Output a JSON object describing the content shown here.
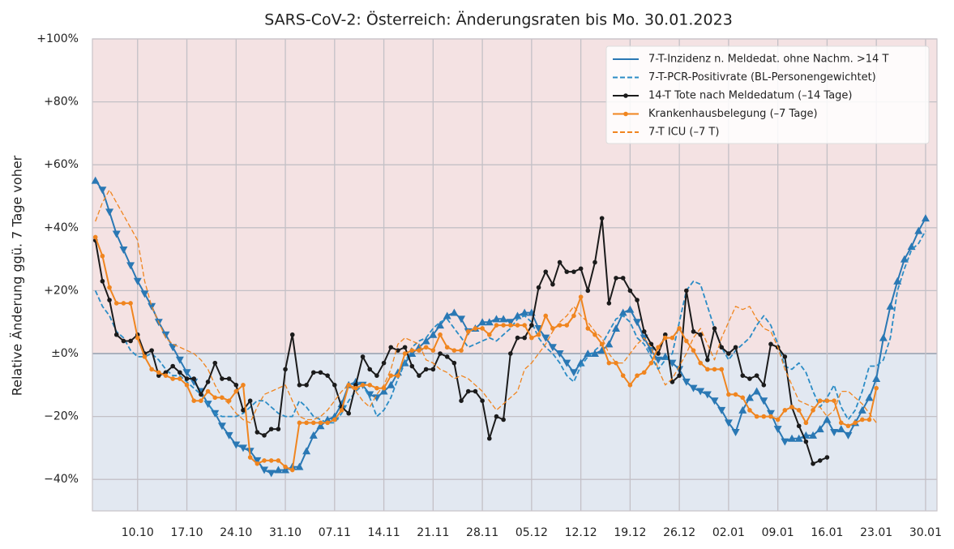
{
  "chart_data": {
    "type": "line",
    "title": "SARS-CoV-2: Österreich: Änderungsraten bis Mo. 30.01.2023",
    "ylabel": "Relative Änderung ggü. 7 Tage voher",
    "categories": [
      "04.10",
      "05.10",
      "06.10",
      "07.10",
      "08.10",
      "09.10",
      "10.10",
      "11.10",
      "12.10",
      "13.10",
      "14.10",
      "15.10",
      "16.10",
      "17.10",
      "18.10",
      "19.10",
      "20.10",
      "21.10",
      "22.10",
      "23.10",
      "24.10",
      "25.10",
      "26.10",
      "27.10",
      "28.10",
      "29.10",
      "30.10",
      "31.10",
      "01.11",
      "02.11",
      "03.11",
      "04.11",
      "05.11",
      "06.11",
      "07.11",
      "08.11",
      "09.11",
      "10.11",
      "11.11",
      "12.11",
      "13.11",
      "14.11",
      "15.11",
      "16.11",
      "17.11",
      "18.11",
      "19.11",
      "20.11",
      "21.11",
      "22.11",
      "23.11",
      "24.11",
      "25.11",
      "26.11",
      "27.11",
      "28.11",
      "29.11",
      "30.11",
      "01.12",
      "02.12",
      "03.12",
      "04.12",
      "05.12",
      "06.12",
      "07.12",
      "08.12",
      "09.12",
      "10.12",
      "11.12",
      "12.12",
      "13.12",
      "14.12",
      "15.12",
      "16.12",
      "17.12",
      "18.12",
      "19.12",
      "20.12",
      "21.12",
      "22.12",
      "23.12",
      "24.12",
      "25.12",
      "26.12",
      "27.12",
      "28.12",
      "29.12",
      "30.12",
      "31.12",
      "01.01",
      "02.01",
      "03.01",
      "04.01",
      "05.01",
      "06.01",
      "07.01",
      "08.01",
      "09.01",
      "10.01",
      "11.01",
      "12.01",
      "13.01",
      "14.01",
      "15.01",
      "16.01",
      "17.01",
      "18.01",
      "19.01",
      "20.01",
      "21.01",
      "22.01",
      "23.01",
      "24.01",
      "25.01",
      "26.01",
      "27.01",
      "28.01",
      "29.01",
      "30.01"
    ],
    "xticks": [
      "10.10",
      "17.10",
      "24.10",
      "31.10",
      "07.11",
      "14.11",
      "21.11",
      "28.11",
      "05.12",
      "12.12",
      "19.12",
      "26.12",
      "02.01",
      "09.01",
      "16.01",
      "23.01",
      "30.01"
    ],
    "ylim": [
      -50,
      100
    ],
    "yticks": [
      {
        "value": -40,
        "label": "−40%"
      },
      {
        "value": -20,
        "label": "−20%"
      },
      {
        "value": 0,
        "label": "±0%"
      },
      {
        "value": 20,
        "label": "+20%"
      },
      {
        "value": 40,
        "label": "+40%"
      },
      {
        "value": 60,
        "label": "+60%"
      },
      {
        "value": 80,
        "label": "+80%"
      },
      {
        "value": 100,
        "label": "+100%"
      }
    ],
    "grid": true,
    "legend": "upper right",
    "positive_color": "#f4e2e3",
    "negative_color": "#e2e8f1",
    "series": [
      {
        "name": "7-T-Inzidenz n. Meldedat. ohne Nachm. >14 T",
        "color": "#2a78b4",
        "dash": false,
        "marker": "triangle",
        "values": [
          55,
          52,
          45,
          38,
          33,
          28,
          23,
          19,
          15,
          10,
          6,
          2,
          -2,
          -6,
          -9,
          -12,
          -16,
          -19,
          -23,
          -26,
          -29,
          -30,
          -31,
          -34,
          -37,
          -38,
          -37,
          -37,
          -36,
          -36,
          -31,
          -26,
          -23,
          -21,
          -20,
          -16,
          -10,
          -9,
          -10,
          -13,
          -14,
          -12,
          -10,
          -6,
          -3,
          0,
          2,
          4,
          6,
          9,
          12,
          13,
          11,
          7,
          8,
          10,
          10,
          11,
          11,
          10,
          12,
          13,
          13,
          8,
          5,
          2,
          0,
          -3,
          -6,
          -3,
          0,
          0,
          1,
          3,
          8,
          13,
          14,
          10,
          5,
          1,
          -2,
          -1,
          -3,
          -5,
          -9,
          -11,
          -12,
          -13,
          -15,
          -18,
          -22,
          -25,
          -18,
          -14,
          -12,
          -15,
          -19,
          -24,
          -28,
          -27,
          -27,
          -26,
          -26,
          -24,
          -21,
          -25,
          -24,
          -26,
          -22,
          -18,
          -14,
          -8,
          5,
          15,
          23,
          30,
          34,
          39,
          43
        ]
      },
      {
        "name": "7-T-PCR-Positivrate (BL-Personengewichtet)",
        "color": "#2b8cc6",
        "dash": true,
        "marker": "none",
        "values": [
          20,
          15,
          12,
          7,
          5,
          1,
          -1,
          -1,
          0,
          -2,
          -5,
          -7,
          -7,
          -9,
          -11,
          -13,
          -16,
          -19,
          -20,
          -20,
          -20,
          -19,
          -17,
          -15,
          -15,
          -17,
          -19,
          -20,
          -20,
          -15,
          -17,
          -20,
          -21,
          -22,
          -22,
          -19,
          -15,
          -12,
          -10,
          -14,
          -20,
          -18,
          -14,
          -8,
          -3,
          2,
          4,
          5,
          8,
          10,
          11,
          8,
          5,
          2,
          3,
          4,
          5,
          4,
          6,
          8,
          11,
          12,
          10,
          5,
          2,
          0,
          -3,
          -7,
          -9,
          -4,
          -1,
          1,
          3,
          7,
          11,
          12,
          10,
          5,
          3,
          -1,
          -5,
          -2,
          0,
          10,
          20,
          23,
          22,
          15,
          8,
          2,
          -2,
          1,
          3,
          5,
          9,
          12,
          9,
          3,
          -4,
          -5,
          -3,
          -6,
          -12,
          -17,
          -14,
          -10,
          -17,
          -21,
          -18,
          -12,
          -4,
          -4,
          -2,
          5,
          20,
          27,
          33,
          35,
          39
        ]
      },
      {
        "name": "14-T Tote nach Meldedatum (–14 Tage)",
        "color": "#1b1b1b",
        "dash": false,
        "marker": "dot",
        "values": [
          36,
          23,
          17,
          6,
          4,
          4,
          6,
          0,
          1,
          -7,
          -6,
          -4,
          -6,
          -8,
          -8,
          -13,
          -9,
          -3,
          -8,
          -8,
          -10,
          -18,
          -15,
          -25,
          -26,
          -24,
          -24,
          -5,
          6,
          -10,
          -10,
          -6,
          -6,
          -7,
          -10,
          -17,
          -19,
          -10,
          -1,
          -5,
          -7,
          -3,
          2,
          1,
          2,
          -4,
          -7,
          -5,
          -5,
          0,
          -1,
          -3,
          -15,
          -12,
          -12,
          -15,
          -27,
          -20,
          -21,
          0,
          5,
          5,
          9,
          21,
          26,
          22,
          29,
          26,
          26,
          27,
          20,
          29,
          43,
          16,
          24,
          24,
          20,
          17,
          7,
          3,
          0,
          6,
          -9,
          -7,
          20,
          7,
          6,
          -2,
          8,
          2,
          0,
          2,
          -7,
          -8,
          -7,
          -10,
          3,
          2,
          -1,
          -17,
          -23,
          -28,
          -35,
          -34,
          -33,
          null,
          null,
          null,
          null,
          null,
          null,
          null,
          null,
          null,
          null,
          null,
          null,
          null,
          null
        ]
      },
      {
        "name": "Krankenhausbelegung (–7 Tage)",
        "color": "#f0851f",
        "dash": false,
        "marker": "dot",
        "values": [
          37,
          31,
          21,
          16,
          16,
          16,
          5,
          -1,
          -5,
          -6,
          -7,
          -8,
          -8,
          -10,
          -15,
          -15,
          -12,
          -14,
          -14,
          -15,
          -12,
          -10,
          -33,
          -35,
          -34,
          -34,
          -34,
          -36,
          -37,
          -22,
          -22,
          -22,
          -22,
          -22,
          -21,
          -18,
          -10,
          -11,
          -10,
          -10,
          -11,
          -11,
          -7,
          -7,
          0,
          1,
          1,
          2,
          1,
          6,
          2,
          1,
          1,
          7,
          8,
          8,
          6,
          9,
          9,
          9,
          9,
          9,
          5,
          6,
          12,
          8,
          9,
          9,
          12,
          18,
          8,
          6,
          3,
          -3,
          -3,
          -7,
          -10,
          -7,
          -6,
          -3,
          2,
          5,
          5,
          8,
          4,
          1,
          -3,
          -5,
          -5,
          -5,
          -13,
          -13,
          -14,
          -18,
          -20,
          -20,
          -20,
          -21,
          -18,
          -17,
          -18,
          -22,
          -18,
          -15,
          -15,
          -15,
          -22,
          -23,
          -22,
          -21,
          -21,
          -11,
          null,
          null,
          null,
          null,
          null,
          null,
          null
        ]
      },
      {
        "name": "7-T ICU (–7 T)",
        "color": "#f0851f",
        "dash": true,
        "marker": "none",
        "values": [
          42,
          48,
          52,
          48,
          44,
          40,
          36,
          23,
          15,
          10,
          5,
          3,
          2,
          1,
          0,
          -2,
          -5,
          -10,
          -14,
          -16,
          -19,
          -21,
          -22,
          -17,
          -13,
          -12,
          -11,
          -10,
          -15,
          -20,
          -21,
          -21,
          -20,
          -18,
          -15,
          -12,
          -10,
          -12,
          -15,
          -17,
          -13,
          -10,
          -5,
          3,
          5,
          4,
          3,
          -2,
          -3,
          -5,
          -6,
          -8,
          -7,
          -8,
          -10,
          -12,
          -15,
          -18,
          -16,
          -14,
          -12,
          -5,
          -3,
          0,
          3,
          7,
          10,
          12,
          15,
          12,
          10,
          7,
          5,
          0,
          -3,
          -3,
          0,
          3,
          5,
          2,
          -5,
          -10,
          -8,
          -4,
          0,
          5,
          8,
          3,
          -2,
          5,
          10,
          15,
          14,
          15,
          11,
          8,
          7,
          2,
          -5,
          -10,
          -15,
          -16,
          -17,
          -17,
          -20,
          -18,
          -12,
          -12,
          -14,
          -16,
          -19,
          -22,
          null,
          null,
          null,
          null,
          null,
          null,
          null
        ]
      }
    ]
  }
}
